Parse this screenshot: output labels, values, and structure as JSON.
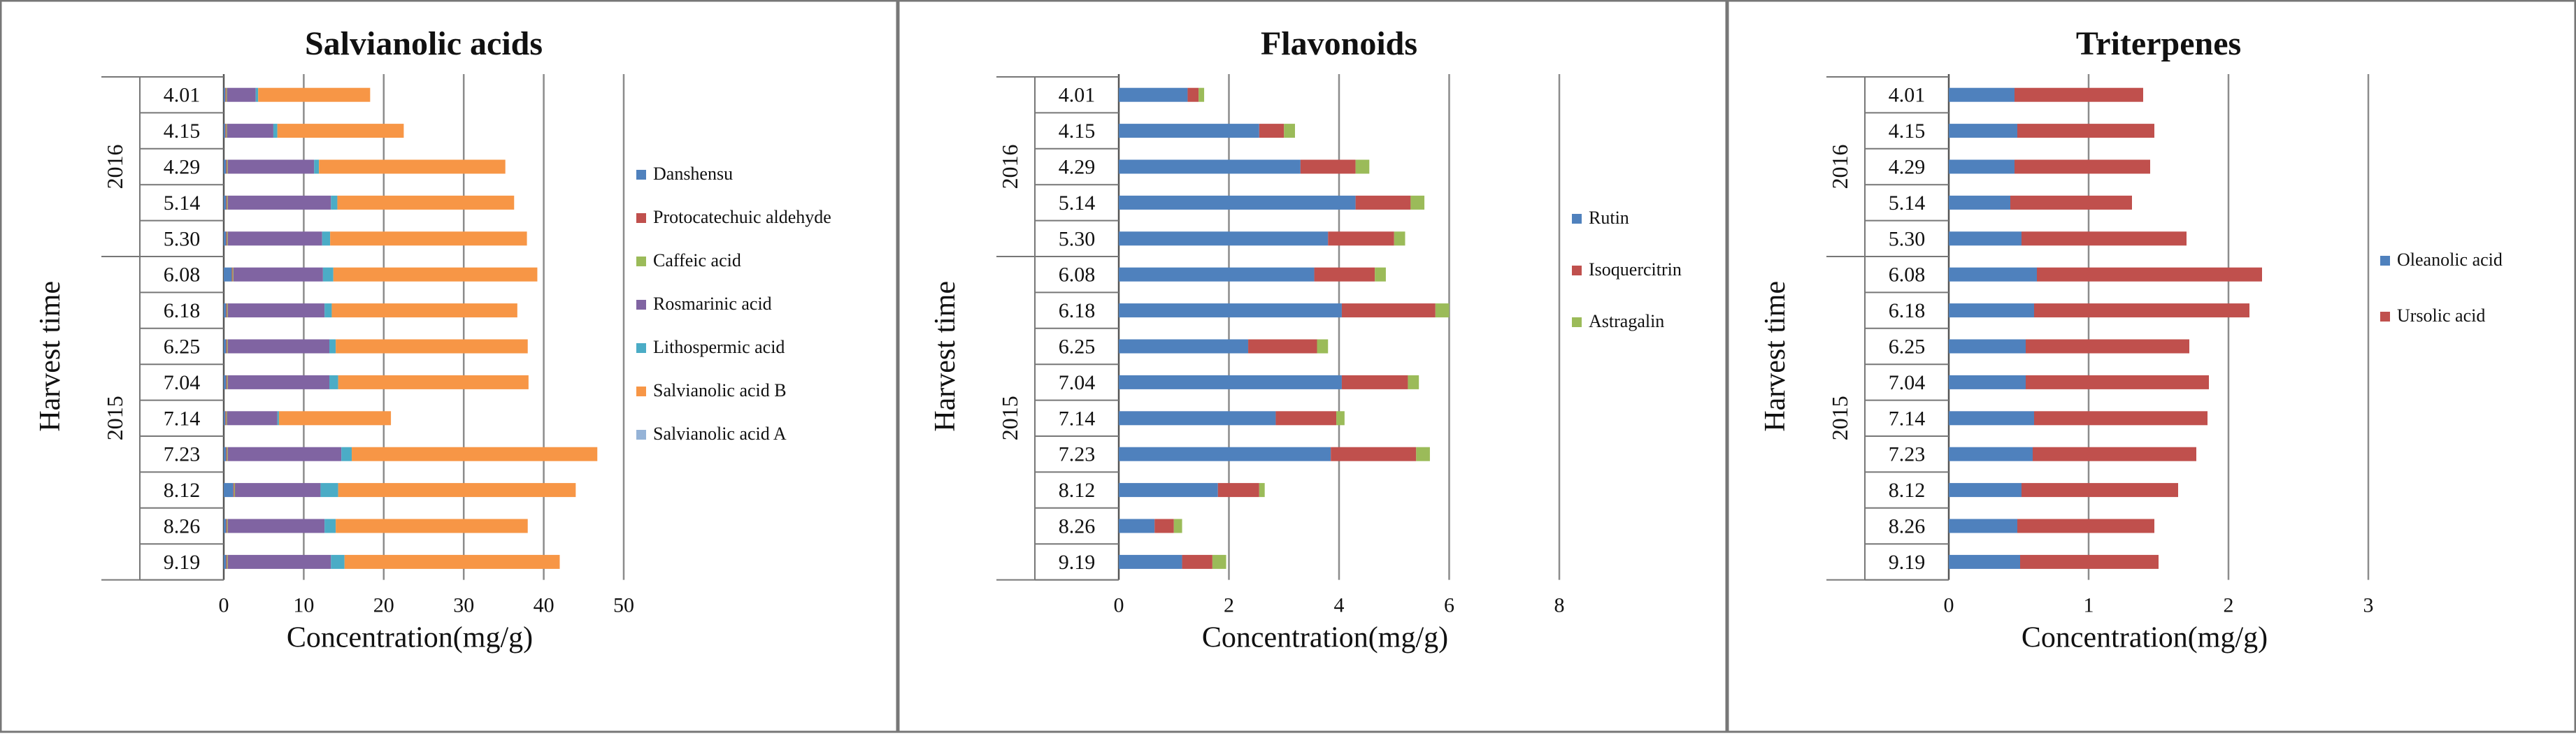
{
  "chart_data": [
    {
      "type": "bar",
      "orientation": "horizontal",
      "stacked": true,
      "title": "Salvianolic acids",
      "xlabel": "Concentration(mg/g)",
      "ylabel": "Harvest time",
      "xlim": [
        0,
        50
      ],
      "xticks": [
        0,
        10,
        20,
        30,
        40,
        50
      ],
      "grid": true,
      "legend_position": "right",
      "groups": [
        {
          "label": "2016",
          "categories": [
            "4.01",
            "4.15",
            "4.29",
            "5.14",
            "5.30"
          ]
        },
        {
          "label": "2015",
          "categories": [
            "6.08",
            "6.18",
            "6.25",
            "7.04",
            "7.14",
            "7.23",
            "8.12",
            "8.26",
            "9.19"
          ]
        }
      ],
      "categories": [
        "4.01",
        "4.15",
        "4.29",
        "5.14",
        "5.30",
        "6.08",
        "6.18",
        "6.25",
        "7.04",
        "7.14",
        "7.23",
        "8.12",
        "8.26",
        "9.19"
      ],
      "series": [
        {
          "name": "Danshensu",
          "color": "#4f81bd",
          "values": [
            0.2,
            0.2,
            0.3,
            0.3,
            0.3,
            1.0,
            0.3,
            0.3,
            0.3,
            0.2,
            0.3,
            1.2,
            0.3,
            0.3
          ]
        },
        {
          "name": "Protocatechuic aldehyde",
          "color": "#c0504d",
          "values": [
            0.1,
            0.1,
            0.1,
            0.1,
            0.1,
            0.1,
            0.1,
            0.1,
            0.1,
            0.1,
            0.1,
            0.1,
            0.1,
            0.1
          ]
        },
        {
          "name": "Caffeic acid",
          "color": "#9bbb59",
          "values": [
            0.1,
            0.1,
            0.1,
            0.1,
            0.1,
            0.1,
            0.1,
            0.1,
            0.1,
            0.1,
            0.1,
            0.1,
            0.1,
            0.1
          ]
        },
        {
          "name": "Rosmarinic acid",
          "color": "#8064a2",
          "values": [
            3.6,
            5.8,
            10.8,
            12.9,
            11.8,
            11.2,
            12.1,
            12.7,
            12.7,
            6.3,
            14.2,
            10.7,
            12.1,
            12.9
          ]
        },
        {
          "name": "Lithospermic acid",
          "color": "#4bacc6",
          "values": [
            0.3,
            0.5,
            0.6,
            0.8,
            1.0,
            1.3,
            0.9,
            0.8,
            1.1,
            0.2,
            1.3,
            2.2,
            1.4,
            1.7
          ]
        },
        {
          "name": "Salvianolic acid B",
          "color": "#f79646",
          "values": [
            14.0,
            15.8,
            23.3,
            22.1,
            24.6,
            25.5,
            23.2,
            24.0,
            23.8,
            14.0,
            30.7,
            29.7,
            24.0,
            26.9
          ]
        },
        {
          "name": "Salvianolic acid A",
          "color": "#95b3d7",
          "values": [
            0,
            0,
            0,
            0,
            0,
            0,
            0,
            0,
            0,
            0,
            0,
            0,
            0,
            0
          ]
        }
      ]
    },
    {
      "type": "bar",
      "orientation": "horizontal",
      "stacked": true,
      "title": "Flavonoids",
      "xlabel": "Concentration(mg/g)",
      "ylabel": "Harvest time",
      "xlim": [
        0,
        8
      ],
      "xticks": [
        0,
        2,
        4,
        6,
        8
      ],
      "grid": true,
      "legend_position": "right",
      "groups": [
        {
          "label": "2016",
          "categories": [
            "4.01",
            "4.15",
            "4.29",
            "5.14",
            "5.30"
          ]
        },
        {
          "label": "2015",
          "categories": [
            "6.08",
            "6.18",
            "6.25",
            "7.04",
            "7.14",
            "7.23",
            "8.12",
            "8.26",
            "9.19"
          ]
        }
      ],
      "categories": [
        "4.01",
        "4.15",
        "4.29",
        "5.14",
        "5.30",
        "6.08",
        "6.18",
        "6.25",
        "7.04",
        "7.14",
        "7.23",
        "8.12",
        "8.26",
        "9.19"
      ],
      "series": [
        {
          "name": "Rutin",
          "color": "#4f81bd",
          "values": [
            1.25,
            2.55,
            3.3,
            4.3,
            3.8,
            3.55,
            4.05,
            2.35,
            4.05,
            2.85,
            3.85,
            1.8,
            0.65,
            1.15
          ]
        },
        {
          "name": "Isoquercitrin",
          "color": "#c0504d",
          "values": [
            0.2,
            0.45,
            1.0,
            1.0,
            1.2,
            1.1,
            1.7,
            1.25,
            1.2,
            1.1,
            1.55,
            0.75,
            0.35,
            0.55
          ]
        },
        {
          "name": "Astragalin",
          "color": "#9bbb59",
          "values": [
            0.1,
            0.2,
            0.25,
            0.25,
            0.2,
            0.2,
            0.25,
            0.2,
            0.2,
            0.15,
            0.25,
            0.1,
            0.15,
            0.25
          ]
        }
      ]
    },
    {
      "type": "bar",
      "orientation": "horizontal",
      "stacked": true,
      "title": "Triterpenes",
      "xlabel": "Concentration(mg/g)",
      "ylabel": "Harvest time",
      "xlim": [
        0,
        3
      ],
      "xticks": [
        0,
        1,
        2,
        3
      ],
      "grid": true,
      "legend_position": "right",
      "groups": [
        {
          "label": "2016",
          "categories": [
            "4.01",
            "4.15",
            "4.29",
            "5.14",
            "5.30"
          ]
        },
        {
          "label": "2015",
          "categories": [
            "6.08",
            "6.18",
            "6.25",
            "7.04",
            "7.14",
            "7.23",
            "8.12",
            "8.26",
            "9.19"
          ]
        }
      ],
      "categories": [
        "4.01",
        "4.15",
        "4.29",
        "5.14",
        "5.30",
        "6.08",
        "6.18",
        "6.25",
        "7.04",
        "7.14",
        "7.23",
        "8.12",
        "8.26",
        "9.19"
      ],
      "series": [
        {
          "name": "Oleanolic acid",
          "color": "#4f81bd",
          "values": [
            0.47,
            0.49,
            0.47,
            0.44,
            0.52,
            0.63,
            0.61,
            0.55,
            0.55,
            0.61,
            0.6,
            0.52,
            0.49,
            0.51
          ]
        },
        {
          "name": "Ursolic acid",
          "color": "#c0504d",
          "values": [
            0.92,
            0.98,
            0.97,
            0.87,
            1.18,
            1.61,
            1.54,
            1.17,
            1.31,
            1.24,
            1.17,
            1.12,
            0.98,
            0.99
          ]
        }
      ]
    }
  ]
}
